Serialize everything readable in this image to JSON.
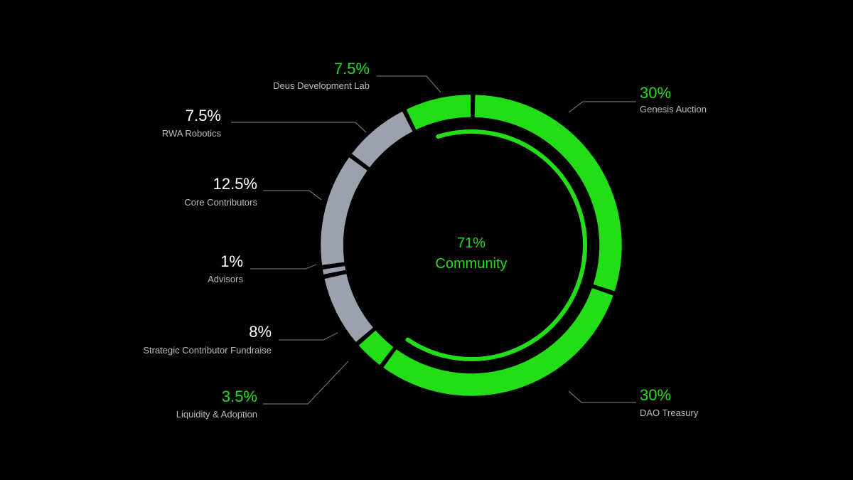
{
  "colors": {
    "background": "#000000",
    "community": "#22dd18",
    "other": "#9ba1ad",
    "pct_other": "#ffffff",
    "label": "#b9bcc2",
    "leader": "#6b6e75"
  },
  "center": {
    "value": "71%",
    "label": "Community"
  },
  "chart_data": {
    "type": "pie",
    "variant": "donut",
    "title": "",
    "segments": [
      {
        "pct_label": "30%",
        "label": "Genesis Auction",
        "value": 30,
        "group": "community"
      },
      {
        "pct_label": "30%",
        "label": "DAO Treasury",
        "value": 30,
        "group": "community"
      },
      {
        "pct_label": "3.5%",
        "label": "Liquidity & Adoption",
        "value": 3.5,
        "group": "community"
      },
      {
        "pct_label": "8%",
        "label": "Strategic Contributor Fundraise",
        "value": 8,
        "group": "other"
      },
      {
        "pct_label": "1%",
        "label": "Advisors",
        "value": 1,
        "group": "other"
      },
      {
        "pct_label": "12.5%",
        "label": "Core Contributors",
        "value": 12.5,
        "group": "other"
      },
      {
        "pct_label": "7.5%",
        "label": "RWA Robotics",
        "value": 7.5,
        "group": "other"
      },
      {
        "pct_label": "7.5%",
        "label": "Deus Development Lab",
        "value": 7.5,
        "group": "community"
      }
    ],
    "community_total": 71
  }
}
